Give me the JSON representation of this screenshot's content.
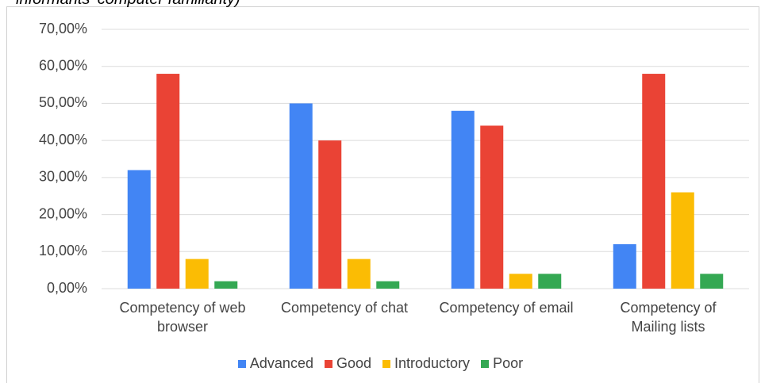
{
  "chart_data": {
    "type": "bar",
    "title": "informants' computer familiarity)",
    "categories": [
      "Competency of web browser",
      "Competency of chat",
      "Competency of email",
      "Competency of Mailing lists"
    ],
    "series": [
      {
        "name": "Advanced",
        "color": "#4285f4",
        "values": [
          32,
          50,
          48,
          12
        ]
      },
      {
        "name": "Good",
        "color": "#ea4335",
        "values": [
          58,
          40,
          44,
          58
        ]
      },
      {
        "name": "Introductory",
        "color": "#fbbc04",
        "values": [
          8,
          8,
          4,
          26
        ]
      },
      {
        "name": "Poor",
        "color": "#34a853",
        "values": [
          2,
          2,
          4,
          4
        ]
      }
    ],
    "ylim": [
      0,
      70
    ],
    "yticks": [
      {
        "value": 0,
        "label": "0,00%"
      },
      {
        "value": 10,
        "label": "10,00%"
      },
      {
        "value": 20,
        "label": "20,00%"
      },
      {
        "value": 30,
        "label": "30,00%"
      },
      {
        "value": 40,
        "label": "40,00%"
      },
      {
        "value": 50,
        "label": "50,00%"
      },
      {
        "value": 60,
        "label": "60,00%"
      },
      {
        "value": 70,
        "label": "70,00%"
      }
    ],
    "grid": true,
    "legend": "bottom"
  }
}
